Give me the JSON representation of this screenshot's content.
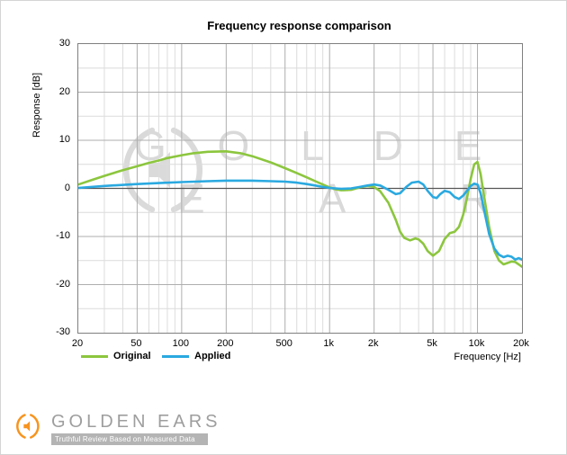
{
  "chart_data": {
    "type": "line",
    "title": "Frequency response comparison",
    "xlabel": "Frequency [Hz]",
    "ylabel": "Response [dB]",
    "xscale": "log",
    "xlim": [
      20,
      20000
    ],
    "ylim": [
      -30,
      30
    ],
    "grid": {
      "x_major_ticks": [
        {
          "f": 20,
          "label": "20"
        },
        {
          "f": 50,
          "label": "50"
        },
        {
          "f": 100,
          "label": "100"
        },
        {
          "f": 200,
          "label": "200"
        },
        {
          "f": 500,
          "label": "500"
        },
        {
          "f": 1000,
          "label": "1k"
        },
        {
          "f": 2000,
          "label": "2k"
        },
        {
          "f": 5000,
          "label": "5k"
        },
        {
          "f": 10000,
          "label": "10k"
        },
        {
          "f": 20000,
          "label": "20k"
        }
      ],
      "x_minor": [
        30,
        40,
        60,
        70,
        80,
        90,
        300,
        400,
        600,
        700,
        800,
        900,
        3000,
        4000,
        6000,
        7000,
        8000,
        9000
      ],
      "y_major_ticks": [
        {
          "v": 30,
          "label": "30"
        },
        {
          "v": 20,
          "label": "20"
        },
        {
          "v": 10,
          "label": "10"
        },
        {
          "v": 0,
          "label": "0"
        },
        {
          "v": -10,
          "label": "-10"
        },
        {
          "v": -20,
          "label": "-20"
        },
        {
          "v": -30,
          "label": "-30"
        }
      ],
      "y_minor": [
        -25,
        -15,
        -5,
        5,
        15,
        25
      ]
    },
    "series": [
      {
        "name": "Original",
        "color": "#8cc63e",
        "points": [
          [
            20,
            0.8
          ],
          [
            25,
            1.8
          ],
          [
            30,
            2.6
          ],
          [
            40,
            3.8
          ],
          [
            50,
            4.6
          ],
          [
            60,
            5.3
          ],
          [
            70,
            5.8
          ],
          [
            80,
            6.3
          ],
          [
            100,
            6.9
          ],
          [
            120,
            7.3
          ],
          [
            150,
            7.6
          ],
          [
            200,
            7.7
          ],
          [
            250,
            7.3
          ],
          [
            300,
            6.7
          ],
          [
            400,
            5.4
          ],
          [
            500,
            4.2
          ],
          [
            600,
            3.2
          ],
          [
            700,
            2.3
          ],
          [
            800,
            1.5
          ],
          [
            900,
            0.8
          ],
          [
            1000,
            0.2
          ],
          [
            1100,
            -0.2
          ],
          [
            1200,
            -0.4
          ],
          [
            1400,
            -0.3
          ],
          [
            1600,
            0.2
          ],
          [
            1800,
            0.5
          ],
          [
            2000,
            0.3
          ],
          [
            2200,
            -0.6
          ],
          [
            2500,
            -3.0
          ],
          [
            2800,
            -6.5
          ],
          [
            3000,
            -9.0
          ],
          [
            3200,
            -10.3
          ],
          [
            3500,
            -10.8
          ],
          [
            3800,
            -10.4
          ],
          [
            4000,
            -10.6
          ],
          [
            4300,
            -11.5
          ],
          [
            4600,
            -13.0
          ],
          [
            5000,
            -14.0
          ],
          [
            5500,
            -13.0
          ],
          [
            6000,
            -10.5
          ],
          [
            6500,
            -9.3
          ],
          [
            7000,
            -9.0
          ],
          [
            7500,
            -8.0
          ],
          [
            8000,
            -5.5
          ],
          [
            8500,
            -2.0
          ],
          [
            9000,
            2.0
          ],
          [
            9500,
            5.0
          ],
          [
            10000,
            5.5
          ],
          [
            10500,
            3.0
          ],
          [
            11000,
            -1.0
          ],
          [
            12000,
            -8.0
          ],
          [
            13000,
            -13.0
          ],
          [
            14000,
            -15.0
          ],
          [
            15000,
            -15.8
          ],
          [
            16000,
            -15.5
          ],
          [
            17000,
            -15.2
          ],
          [
            18000,
            -15.3
          ],
          [
            19000,
            -15.8
          ],
          [
            20000,
            -16.3
          ]
        ]
      },
      {
        "name": "Applied",
        "color": "#2aa9e0",
        "points": [
          [
            20,
            0.1
          ],
          [
            30,
            0.5
          ],
          [
            50,
            0.9
          ],
          [
            70,
            1.1
          ],
          [
            100,
            1.3
          ],
          [
            150,
            1.5
          ],
          [
            200,
            1.6
          ],
          [
            300,
            1.6
          ],
          [
            400,
            1.5
          ],
          [
            500,
            1.4
          ],
          [
            600,
            1.2
          ],
          [
            700,
            0.9
          ],
          [
            800,
            0.6
          ],
          [
            900,
            0.3
          ],
          [
            1000,
            0.1
          ],
          [
            1200,
            -0.1
          ],
          [
            1400,
            0.0
          ],
          [
            1600,
            0.3
          ],
          [
            1800,
            0.6
          ],
          [
            2000,
            0.8
          ],
          [
            2200,
            0.6
          ],
          [
            2500,
            -0.3
          ],
          [
            2800,
            -1.2
          ],
          [
            3000,
            -1.0
          ],
          [
            3300,
            0.3
          ],
          [
            3600,
            1.2
          ],
          [
            4000,
            1.4
          ],
          [
            4300,
            0.8
          ],
          [
            4600,
            -0.5
          ],
          [
            5000,
            -1.8
          ],
          [
            5300,
            -2.0
          ],
          [
            5600,
            -1.2
          ],
          [
            6000,
            -0.5
          ],
          [
            6500,
            -0.8
          ],
          [
            7000,
            -1.8
          ],
          [
            7500,
            -2.2
          ],
          [
            8000,
            -1.5
          ],
          [
            8500,
            -0.5
          ],
          [
            9000,
            0.5
          ],
          [
            9500,
            1.0
          ],
          [
            10000,
            0.8
          ],
          [
            10500,
            -1.0
          ],
          [
            11000,
            -4.0
          ],
          [
            12000,
            -9.5
          ],
          [
            13000,
            -12.5
          ],
          [
            14000,
            -13.8
          ],
          [
            15000,
            -14.3
          ],
          [
            16000,
            -14.0
          ],
          [
            17000,
            -14.2
          ],
          [
            18000,
            -14.8
          ],
          [
            19000,
            -14.5
          ],
          [
            20000,
            -14.8
          ]
        ]
      }
    ],
    "grid_colors": {
      "minor": "#dcdcdc",
      "major": "#aeaeae",
      "zero": "#555555",
      "border": "#7f7f7f"
    }
  },
  "watermark": {
    "line1": "G O L D E N",
    "line2": "E A R S"
  },
  "footer": {
    "brand": "GOLDEN EARS",
    "tagline": "Truthful Review Based on Measured Data",
    "accent_color": "#f7941e"
  }
}
